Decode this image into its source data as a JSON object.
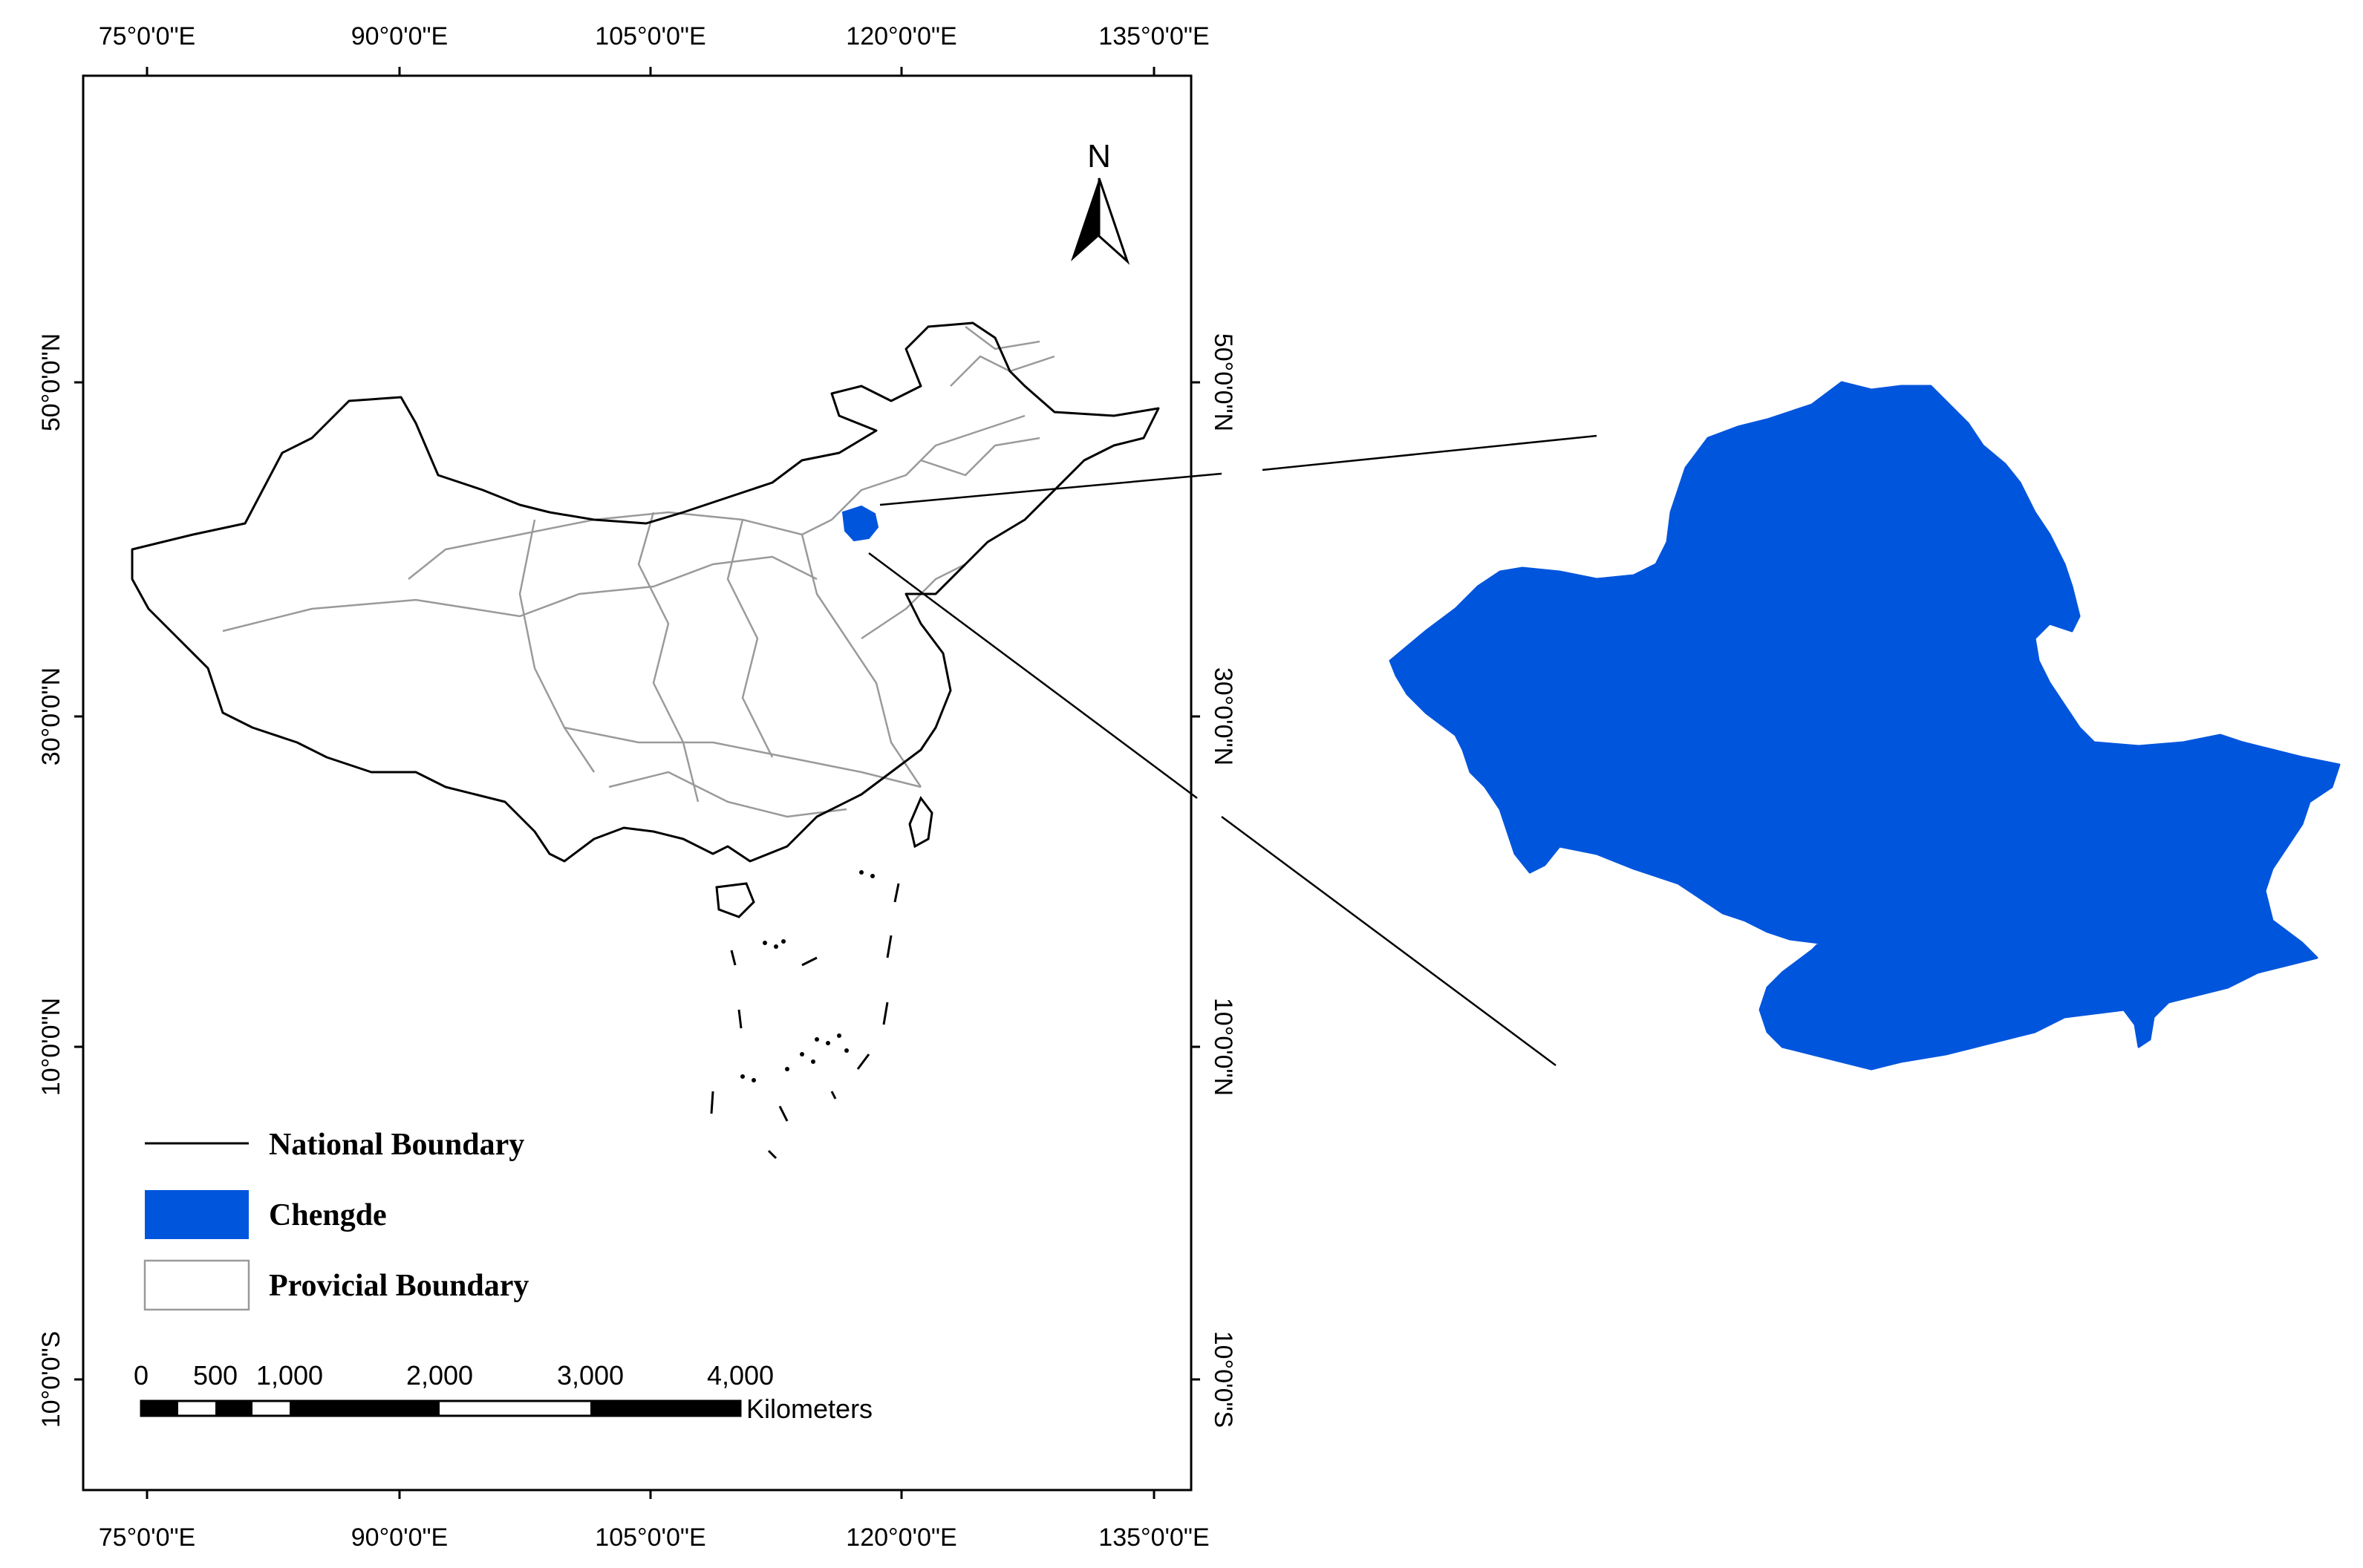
{
  "frame": {
    "top_lon_labels": [
      "75°0'0\"E",
      "90°0'0\"E",
      "105°0'0\"E",
      "120°0'0\"E",
      "135°0'0\"E"
    ],
    "bottom_lon_labels": [
      "75°0'0\"E",
      "90°0'0\"E",
      "105°0'0\"E",
      "120°0'0\"E",
      "135°0'0\"E"
    ],
    "left_lat_labels": [
      "50°0'0\"N",
      "30°0'0\"N",
      "10°0'0\"N",
      "10°0'0\"S"
    ],
    "right_lat_labels": [
      "50°0'0\"N",
      "30°0'0\"N",
      "10°0'0\"N",
      "10°0'0\"S"
    ]
  },
  "north_arrow": {
    "label": "N",
    "icon": "north-arrow-icon"
  },
  "legend": {
    "items": [
      {
        "label": "National Boundary",
        "symbol": "line",
        "color": "#000000"
      },
      {
        "label": "Chengde",
        "symbol": "fill",
        "color": "#0055dd"
      },
      {
        "label": "Provicial Boundary",
        "symbol": "outline",
        "color": "#999999"
      }
    ]
  },
  "scale_bar": {
    "ticks": [
      "0",
      "500",
      "1,000",
      "2,000",
      "3,000",
      "4,000"
    ],
    "unit": "Kilometers"
  },
  "colors": {
    "highlight": "#0055dd",
    "national_boundary": "#000000",
    "provincial_boundary": "#999999"
  }
}
